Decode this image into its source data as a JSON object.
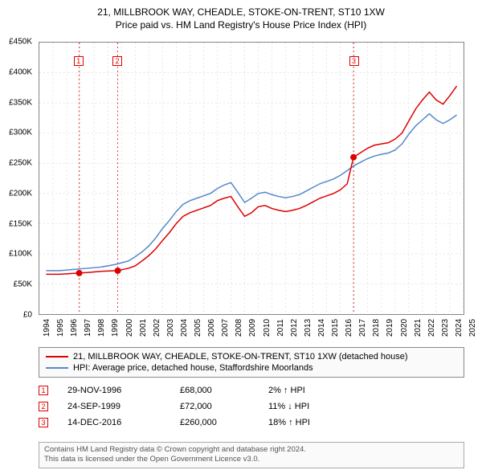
{
  "title": {
    "line1": "21, MILLBROOK WAY, CHEADLE, STOKE-ON-TRENT, ST10 1XW",
    "line2": "Price paid vs. HM Land Registry's House Price Index (HPI)"
  },
  "chart": {
    "type": "line",
    "x_range": [
      1994,
      2025
    ],
    "x_ticks": [
      1994,
      1995,
      1996,
      1997,
      1998,
      1999,
      2000,
      2001,
      2002,
      2003,
      2004,
      2005,
      2006,
      2007,
      2008,
      2009,
      2010,
      2011,
      2012,
      2013,
      2014,
      2015,
      2016,
      2017,
      2018,
      2019,
      2020,
      2021,
      2022,
      2023,
      2024,
      2025
    ],
    "y_range": [
      0,
      450000
    ],
    "y_ticks": [
      0,
      50000,
      100000,
      150000,
      200000,
      250000,
      300000,
      350000,
      400000,
      450000
    ],
    "y_tick_labels": [
      "£0",
      "£50K",
      "£100K",
      "£150K",
      "£200K",
      "£250K",
      "£300K",
      "£350K",
      "£400K",
      "£450K"
    ],
    "grid_color": "#cccccc",
    "grid_dash": "2,3",
    "background_color": "#ffffff",
    "border_color": "#888888",
    "label_fontsize": 10,
    "title_fontsize": 12,
    "series": [
      {
        "name": "21, MILLBROOK WAY, CHEADLE, STOKE-ON-TRENT, ST10 1XW (detached house)",
        "color": "#dd0000",
        "line_width": 1.5,
        "data": [
          [
            1994.5,
            66000
          ],
          [
            1995.5,
            66000
          ],
          [
            1996.9,
            68000
          ],
          [
            1997.5,
            69000
          ],
          [
            1998.5,
            71000
          ],
          [
            1999.7,
            72000
          ],
          [
            2000.5,
            76000
          ],
          [
            2001.0,
            80000
          ],
          [
            2001.5,
            88000
          ],
          [
            2002.0,
            97000
          ],
          [
            2002.5,
            108000
          ],
          [
            2003.0,
            122000
          ],
          [
            2003.5,
            135000
          ],
          [
            2004.0,
            150000
          ],
          [
            2004.5,
            162000
          ],
          [
            2005.0,
            168000
          ],
          [
            2005.5,
            172000
          ],
          [
            2006.0,
            176000
          ],
          [
            2006.5,
            180000
          ],
          [
            2007.0,
            188000
          ],
          [
            2007.5,
            192000
          ],
          [
            2008.0,
            195000
          ],
          [
            2008.5,
            178000
          ],
          [
            2009.0,
            162000
          ],
          [
            2009.5,
            168000
          ],
          [
            2010.0,
            178000
          ],
          [
            2010.5,
            180000
          ],
          [
            2011.0,
            175000
          ],
          [
            2011.5,
            172000
          ],
          [
            2012.0,
            170000
          ],
          [
            2012.5,
            172000
          ],
          [
            2013.0,
            175000
          ],
          [
            2013.5,
            180000
          ],
          [
            2014.0,
            186000
          ],
          [
            2014.5,
            192000
          ],
          [
            2015.0,
            196000
          ],
          [
            2015.5,
            200000
          ],
          [
            2016.0,
            206000
          ],
          [
            2016.5,
            216000
          ],
          [
            2016.96,
            260000
          ],
          [
            2017.5,
            268000
          ],
          [
            2018.0,
            275000
          ],
          [
            2018.5,
            280000
          ],
          [
            2019.0,
            282000
          ],
          [
            2019.5,
            284000
          ],
          [
            2020.0,
            290000
          ],
          [
            2020.5,
            300000
          ],
          [
            2021.0,
            320000
          ],
          [
            2021.5,
            340000
          ],
          [
            2022.0,
            355000
          ],
          [
            2022.5,
            368000
          ],
          [
            2023.0,
            355000
          ],
          [
            2023.5,
            348000
          ],
          [
            2024.0,
            362000
          ],
          [
            2024.5,
            378000
          ]
        ]
      },
      {
        "name": "HPI: Average price, detached house, Staffordshire Moorlands",
        "color": "#5588cc",
        "line_width": 1.5,
        "data": [
          [
            1994.5,
            72000
          ],
          [
            1995.5,
            72000
          ],
          [
            1996.5,
            74000
          ],
          [
            1997.5,
            76000
          ],
          [
            1998.5,
            78000
          ],
          [
            1999.5,
            82000
          ],
          [
            2000.5,
            88000
          ],
          [
            2001.0,
            95000
          ],
          [
            2001.5,
            103000
          ],
          [
            2002.0,
            113000
          ],
          [
            2002.5,
            126000
          ],
          [
            2003.0,
            142000
          ],
          [
            2003.5,
            155000
          ],
          [
            2004.0,
            170000
          ],
          [
            2004.5,
            182000
          ],
          [
            2005.0,
            188000
          ],
          [
            2005.5,
            192000
          ],
          [
            2006.0,
            196000
          ],
          [
            2006.5,
            200000
          ],
          [
            2007.0,
            208000
          ],
          [
            2007.5,
            214000
          ],
          [
            2008.0,
            218000
          ],
          [
            2008.5,
            202000
          ],
          [
            2009.0,
            185000
          ],
          [
            2009.5,
            192000
          ],
          [
            2010.0,
            200000
          ],
          [
            2010.5,
            202000
          ],
          [
            2011.0,
            198000
          ],
          [
            2011.5,
            195000
          ],
          [
            2012.0,
            193000
          ],
          [
            2012.5,
            195000
          ],
          [
            2013.0,
            198000
          ],
          [
            2013.5,
            204000
          ],
          [
            2014.0,
            210000
          ],
          [
            2014.5,
            216000
          ],
          [
            2015.0,
            220000
          ],
          [
            2015.5,
            224000
          ],
          [
            2016.0,
            230000
          ],
          [
            2016.5,
            238000
          ],
          [
            2017.0,
            246000
          ],
          [
            2017.5,
            252000
          ],
          [
            2018.0,
            258000
          ],
          [
            2018.5,
            262000
          ],
          [
            2019.0,
            265000
          ],
          [
            2019.5,
            267000
          ],
          [
            2020.0,
            272000
          ],
          [
            2020.5,
            282000
          ],
          [
            2021.0,
            298000
          ],
          [
            2021.5,
            312000
          ],
          [
            2022.0,
            322000
          ],
          [
            2022.5,
            332000
          ],
          [
            2023.0,
            322000
          ],
          [
            2023.5,
            316000
          ],
          [
            2024.0,
            322000
          ],
          [
            2024.5,
            330000
          ]
        ]
      }
    ],
    "markers": [
      {
        "n": "1",
        "x": 1996.91,
        "y": 68000,
        "line_color": "#dd0000"
      },
      {
        "n": "2",
        "x": 1999.73,
        "y": 72000,
        "line_color": "#dd0000"
      },
      {
        "n": "3",
        "x": 2016.96,
        "y": 260000,
        "line_color": "#dd0000"
      }
    ],
    "marker_point_color": "#dd0000",
    "marker_point_radius": 4,
    "marker_dash": "2,3"
  },
  "legend": {
    "items": [
      {
        "color": "#dd0000",
        "label": "21, MILLBROOK WAY, CHEADLE, STOKE-ON-TRENT, ST10 1XW (detached house)"
      },
      {
        "color": "#5588cc",
        "label": "HPI: Average price, detached house, Staffordshire Moorlands"
      }
    ]
  },
  "events": [
    {
      "n": "1",
      "date": "29-NOV-1996",
      "price": "£68,000",
      "hpi": "2% ↑ HPI"
    },
    {
      "n": "2",
      "date": "24-SEP-1999",
      "price": "£72,000",
      "hpi": "11% ↓ HPI"
    },
    {
      "n": "3",
      "date": "14-DEC-2016",
      "price": "£260,000",
      "hpi": "18% ↑ HPI"
    }
  ],
  "footer": {
    "line1": "Contains HM Land Registry data © Crown copyright and database right 2024.",
    "line2": "This data is licensed under the Open Government Licence v3.0."
  }
}
